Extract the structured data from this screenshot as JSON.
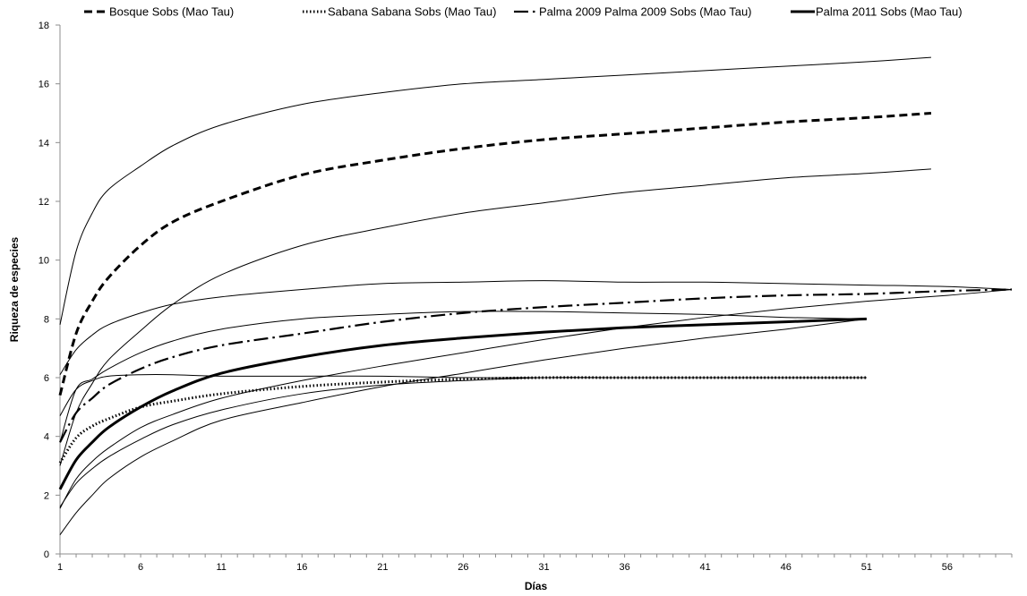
{
  "chart_data": {
    "type": "line",
    "xlabel": "Días",
    "ylabel": "Riqueza de especies",
    "xlim": [
      1,
      60
    ],
    "ylim": [
      0,
      18
    ],
    "x_ticks": [
      1,
      6,
      11,
      16,
      21,
      26,
      31,
      36,
      41,
      46,
      51,
      56
    ],
    "y_ticks": [
      0,
      2,
      4,
      6,
      8,
      10,
      12,
      14,
      16,
      18
    ],
    "legend_position": "top",
    "grid": false,
    "series": [
      {
        "name": "Bosque Sobs (Mao Tau)",
        "style": "dashed",
        "points": [
          [
            1,
            5.4
          ],
          [
            2,
            7.5
          ],
          [
            3,
            8.6
          ],
          [
            4,
            9.4
          ],
          [
            6,
            10.5
          ],
          [
            8,
            11.3
          ],
          [
            11,
            12.0
          ],
          [
            16,
            12.9
          ],
          [
            21,
            13.4
          ],
          [
            26,
            13.8
          ],
          [
            31,
            14.1
          ],
          [
            36,
            14.3
          ],
          [
            41,
            14.5
          ],
          [
            46,
            14.7
          ],
          [
            51,
            14.85
          ],
          [
            55,
            15.0
          ]
        ],
        "upper": [
          [
            1,
            7.8
          ],
          [
            2,
            10.3
          ],
          [
            3,
            11.6
          ],
          [
            4,
            12.4
          ],
          [
            6,
            13.2
          ],
          [
            8,
            13.9
          ],
          [
            11,
            14.6
          ],
          [
            16,
            15.3
          ],
          [
            21,
            15.7
          ],
          [
            26,
            16.0
          ],
          [
            31,
            16.15
          ],
          [
            36,
            16.3
          ],
          [
            41,
            16.45
          ],
          [
            46,
            16.6
          ],
          [
            51,
            16.75
          ],
          [
            55,
            16.9
          ]
        ],
        "lower": [
          [
            1,
            3.0
          ],
          [
            2,
            4.8
          ],
          [
            3,
            5.8
          ],
          [
            4,
            6.6
          ],
          [
            6,
            7.6
          ],
          [
            8,
            8.5
          ],
          [
            11,
            9.5
          ],
          [
            16,
            10.5
          ],
          [
            21,
            11.1
          ],
          [
            26,
            11.6
          ],
          [
            31,
            11.95
          ],
          [
            36,
            12.3
          ],
          [
            41,
            12.55
          ],
          [
            46,
            12.8
          ],
          [
            51,
            12.95
          ],
          [
            55,
            13.1
          ]
        ]
      },
      {
        "name": "Sabana Sabana Sobs (Mao Tau)",
        "style": "dotted",
        "points": [
          [
            1,
            3.1
          ],
          [
            2,
            3.95
          ],
          [
            3,
            4.35
          ],
          [
            4,
            4.6
          ],
          [
            6,
            5.0
          ],
          [
            8,
            5.2
          ],
          [
            11,
            5.45
          ],
          [
            16,
            5.7
          ],
          [
            21,
            5.85
          ],
          [
            26,
            5.95
          ],
          [
            31,
            6.0
          ],
          [
            36,
            6.0
          ],
          [
            41,
            6.0
          ],
          [
            46,
            6.0
          ],
          [
            51,
            6.0
          ]
        ],
        "upper": [
          [
            1,
            4.7
          ],
          [
            2,
            5.6
          ],
          [
            3,
            5.9
          ],
          [
            4,
            6.05
          ],
          [
            6,
            6.1
          ],
          [
            8,
            6.1
          ],
          [
            11,
            6.05
          ],
          [
            16,
            6.05
          ],
          [
            21,
            6.05
          ],
          [
            26,
            6.0
          ],
          [
            31,
            6.0
          ],
          [
            36,
            6.0
          ],
          [
            41,
            6.0
          ],
          [
            46,
            6.0
          ],
          [
            51,
            6.0
          ]
        ],
        "lower": [
          [
            1,
            1.6
          ],
          [
            2,
            2.4
          ],
          [
            3,
            2.9
          ],
          [
            4,
            3.3
          ],
          [
            6,
            3.9
          ],
          [
            8,
            4.4
          ],
          [
            11,
            4.9
          ],
          [
            16,
            5.45
          ],
          [
            21,
            5.75
          ],
          [
            26,
            5.9
          ],
          [
            31,
            6.0
          ],
          [
            36,
            6.0
          ],
          [
            41,
            6.0
          ],
          [
            46,
            6.0
          ],
          [
            51,
            6.0
          ]
        ]
      },
      {
        "name": "Palma 2009 Palma 2009 Sobs (Mao Tau)",
        "style": "dashdot",
        "points": [
          [
            1,
            3.8
          ],
          [
            2,
            4.8
          ],
          [
            3,
            5.3
          ],
          [
            4,
            5.75
          ],
          [
            6,
            6.3
          ],
          [
            8,
            6.7
          ],
          [
            11,
            7.1
          ],
          [
            16,
            7.5
          ],
          [
            21,
            7.9
          ],
          [
            26,
            8.2
          ],
          [
            31,
            8.4
          ],
          [
            36,
            8.55
          ],
          [
            41,
            8.7
          ],
          [
            46,
            8.8
          ],
          [
            51,
            8.85
          ],
          [
            56,
            8.95
          ],
          [
            60,
            9.0
          ]
        ],
        "upper": [
          [
            1,
            6.1
          ],
          [
            2,
            6.95
          ],
          [
            3,
            7.45
          ],
          [
            4,
            7.8
          ],
          [
            6,
            8.2
          ],
          [
            8,
            8.5
          ],
          [
            11,
            8.75
          ],
          [
            16,
            9.0
          ],
          [
            21,
            9.2
          ],
          [
            26,
            9.25
          ],
          [
            31,
            9.3
          ],
          [
            36,
            9.25
          ],
          [
            41,
            9.25
          ],
          [
            46,
            9.2
          ],
          [
            51,
            9.15
          ],
          [
            56,
            9.1
          ],
          [
            60,
            9.0
          ]
        ],
        "lower": [
          [
            1,
            1.55
          ],
          [
            2,
            2.55
          ],
          [
            3,
            3.15
          ],
          [
            4,
            3.6
          ],
          [
            6,
            4.3
          ],
          [
            8,
            4.75
          ],
          [
            11,
            5.3
          ],
          [
            16,
            5.9
          ],
          [
            21,
            6.4
          ],
          [
            26,
            6.85
          ],
          [
            31,
            7.3
          ],
          [
            36,
            7.7
          ],
          [
            41,
            8.05
          ],
          [
            46,
            8.35
          ],
          [
            51,
            8.6
          ],
          [
            56,
            8.8
          ],
          [
            60,
            9.0
          ]
        ]
      },
      {
        "name": "Palma 2011 Sobs (Mao Tau)",
        "style": "thick",
        "points": [
          [
            1,
            2.2
          ],
          [
            2,
            3.2
          ],
          [
            3,
            3.8
          ],
          [
            4,
            4.3
          ],
          [
            6,
            5.0
          ],
          [
            8,
            5.55
          ],
          [
            11,
            6.15
          ],
          [
            16,
            6.7
          ],
          [
            21,
            7.1
          ],
          [
            26,
            7.35
          ],
          [
            31,
            7.55
          ],
          [
            36,
            7.7
          ],
          [
            41,
            7.8
          ],
          [
            46,
            7.9
          ],
          [
            51,
            8.0
          ]
        ],
        "upper": [
          [
            1,
            3.8
          ],
          [
            2,
            5.6
          ],
          [
            3,
            5.95
          ],
          [
            4,
            6.3
          ],
          [
            6,
            6.85
          ],
          [
            8,
            7.25
          ],
          [
            11,
            7.65
          ],
          [
            16,
            8.0
          ],
          [
            21,
            8.15
          ],
          [
            26,
            8.25
          ],
          [
            31,
            8.25
          ],
          [
            36,
            8.2
          ],
          [
            41,
            8.15
          ],
          [
            46,
            8.05
          ],
          [
            51,
            8.0
          ]
        ],
        "lower": [
          [
            1,
            0.65
          ],
          [
            2,
            1.4
          ],
          [
            3,
            2.0
          ],
          [
            4,
            2.55
          ],
          [
            6,
            3.3
          ],
          [
            8,
            3.85
          ],
          [
            11,
            4.55
          ],
          [
            16,
            5.15
          ],
          [
            21,
            5.7
          ],
          [
            26,
            6.15
          ],
          [
            31,
            6.6
          ],
          [
            36,
            7.0
          ],
          [
            41,
            7.35
          ],
          [
            46,
            7.65
          ],
          [
            51,
            8.0
          ]
        ]
      }
    ]
  }
}
